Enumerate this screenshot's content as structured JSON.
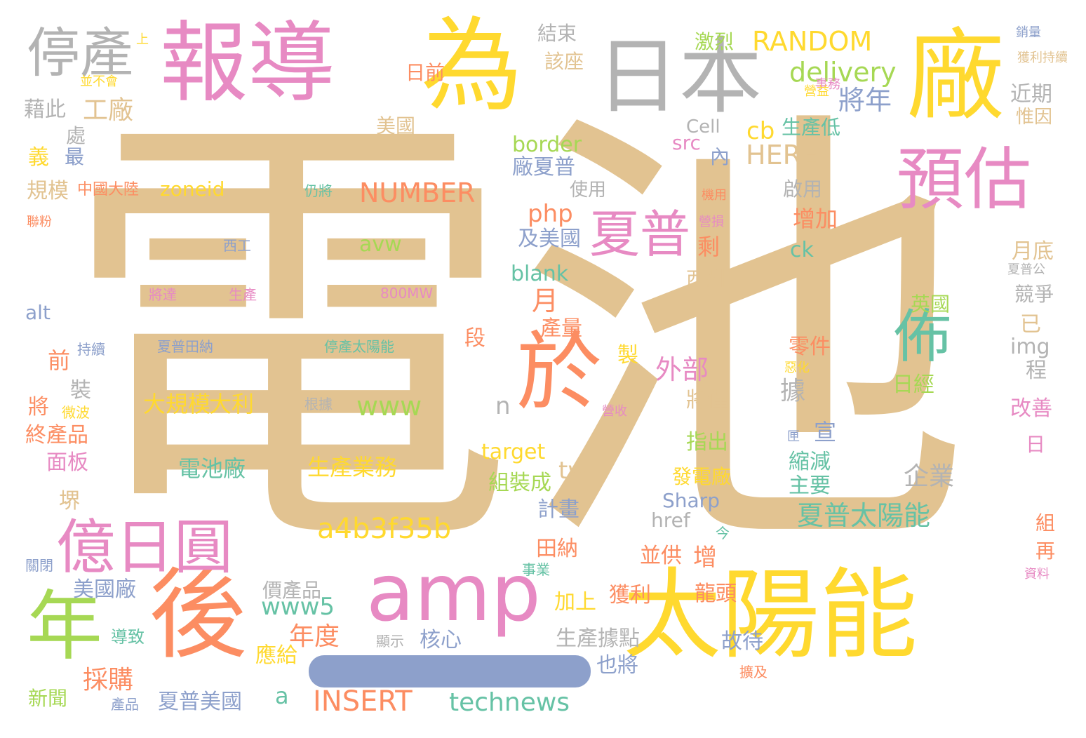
{
  "palette": {
    "tan": "#e2c391",
    "pink": "#e78ac3",
    "yellow": "#ffd92f",
    "gray": "#b3b3b3",
    "green": "#a6d854",
    "orange": "#fc8d62",
    "teal": "#66c2a5",
    "blue": "#8da0cb"
  },
  "words": [
    {
      "text": "電池",
      "color": "#e2c391"
    },
    {
      "text": "報導",
      "color": "#e78ac3"
    },
    {
      "text": "為",
      "color": "#ffd92f"
    },
    {
      "text": "日本",
      "color": "#b3b3b3"
    },
    {
      "text": "廠",
      "color": "#ffd92f"
    },
    {
      "text": "停產",
      "color": "#b3b3b3"
    },
    {
      "text": "預估",
      "color": "#e78ac3"
    },
    {
      "text": "太陽能",
      "color": "#ffd92f"
    },
    {
      "text": "後",
      "color": "#fc8d62"
    },
    {
      "text": "年",
      "color": "#a6d854"
    },
    {
      "text": "amp",
      "color": "#e78ac3"
    },
    {
      "text": "億日圓",
      "color": "#e78ac3"
    },
    {
      "text": "於",
      "color": "#fc8d62"
    },
    {
      "text": "夏普",
      "color": "#e78ac3"
    },
    {
      "text": "佈",
      "color": "#66c2a5"
    },
    {
      "text": "RANDOM",
      "color": "#ffd92f"
    },
    {
      "text": "delivery",
      "color": "#a6d854"
    },
    {
      "text": "將年",
      "color": "#8da0cb"
    },
    {
      "text": "cb",
      "color": "#ffd92f"
    },
    {
      "text": "HERE",
      "color": "#e2c391"
    },
    {
      "text": "生產低",
      "color": "#66c2a5"
    },
    {
      "text": "NUMBER",
      "color": "#fc8d62"
    },
    {
      "text": "php",
      "color": "#fc8d62"
    },
    {
      "text": "工廠",
      "color": "#e2c391"
    },
    {
      "text": "藉此",
      "color": "#b3b3b3"
    },
    {
      "text": "處",
      "color": "#b3b3b3"
    },
    {
      "text": "義",
      "color": "#ffd92f"
    },
    {
      "text": "最",
      "color": "#8da0cb"
    },
    {
      "text": "規模",
      "color": "#e2c391"
    },
    {
      "text": "中國大陸",
      "color": "#fc8d62"
    },
    {
      "text": "zoneid",
      "color": "#ffd92f"
    },
    {
      "text": "仍將",
      "color": "#66c2a5"
    },
    {
      "text": "聯粉",
      "color": "#fc8d62"
    },
    {
      "text": "西工",
      "color": "#8da0cb"
    },
    {
      "text": "生產",
      "color": "#e78ac3"
    },
    {
      "text": "將達",
      "color": "#e78ac3"
    },
    {
      "text": "800MW",
      "color": "#e78ac3"
    },
    {
      "text": "avw",
      "color": "#a6d854"
    },
    {
      "text": "blank",
      "color": "#66c2a5"
    },
    {
      "text": "alt",
      "color": "#8da0cb"
    },
    {
      "text": "持續",
      "color": "#8da0cb"
    },
    {
      "text": "夏普田納",
      "color": "#8da0cb"
    },
    {
      "text": "停產太陽能",
      "color": "#66c2a5"
    },
    {
      "text": "前",
      "color": "#fc8d62"
    },
    {
      "text": "裝",
      "color": "#b3b3b3"
    },
    {
      "text": "將",
      "color": "#fc8d62"
    },
    {
      "text": "微波",
      "color": "#ffd92f"
    },
    {
      "text": "終產品",
      "color": "#fc8d62"
    },
    {
      "text": "面板",
      "color": "#e78ac3"
    },
    {
      "text": "堺",
      "color": "#e2c391"
    },
    {
      "text": "關閉",
      "color": "#8da0cb"
    },
    {
      "text": "新聞",
      "color": "#a6d854"
    },
    {
      "text": "導致",
      "color": "#66c2a5"
    },
    {
      "text": "產品",
      "color": "#8da0cb"
    },
    {
      "text": "美國廠",
      "color": "#8da0cb"
    },
    {
      "text": "採購",
      "color": "#fc8d62"
    },
    {
      "text": "夏普美國",
      "color": "#8da0cb"
    },
    {
      "text": "大規模",
      "color": "#ffd92f"
    },
    {
      "text": "大利",
      "color": "#ffd92f"
    },
    {
      "text": "電池廠",
      "color": "#66c2a5"
    },
    {
      "text": "生產業務",
      "color": "#ffd92f"
    },
    {
      "text": "根據",
      "color": "#b3b3b3"
    },
    {
      "text": "www",
      "color": "#a6d854"
    },
    {
      "text": "a4b3f35b",
      "color": "#ffd92f"
    },
    {
      "text": "www5",
      "color": "#66c2a5"
    },
    {
      "text": "年度",
      "color": "#fc8d62"
    },
    {
      "text": "INSERT",
      "color": "#fc8d62"
    },
    {
      "text": "technews",
      "color": "#66c2a5"
    },
    {
      "text": "a",
      "color": "#66c2a5"
    },
    {
      "text": "應給",
      "color": "#ffd92f"
    },
    {
      "text": "價產品",
      "color": "#b3b3b3"
    },
    {
      "text": "顯示",
      "color": "#b3b3b3"
    },
    {
      "text": "核心",
      "color": "#8da0cb"
    },
    {
      "text": "加上",
      "color": "#ffd92f"
    },
    {
      "text": "獲利",
      "color": "#fc8d62"
    },
    {
      "text": "生產據點",
      "color": "#b3b3b3"
    },
    {
      "text": "也將",
      "color": "#8da0cb"
    },
    {
      "text": "故待",
      "color": "#8da0cb"
    },
    {
      "text": "龍頭",
      "color": "#fc8d62"
    },
    {
      "text": "並供",
      "color": "#fc8d62"
    },
    {
      "text": "增",
      "color": "#fc8d62"
    },
    {
      "text": "田納",
      "color": "#fc8d62"
    },
    {
      "text": "計畫",
      "color": "#8da0cb"
    },
    {
      "text": "組裝成",
      "color": "#a6d854"
    },
    {
      "text": "tw",
      "color": "#e2c391"
    },
    {
      "text": "target",
      "color": "#ffd92f"
    },
    {
      "text": "n",
      "color": "#b3b3b3"
    },
    {
      "text": "月",
      "color": "#fc8d62"
    },
    {
      "text": "外部",
      "color": "#e78ac3"
    },
    {
      "text": "產量",
      "color": "#fc8d62"
    },
    {
      "text": "段",
      "color": "#fc8d62"
    },
    {
      "text": "製",
      "color": "#ffd92f"
    },
    {
      "text": "結束",
      "color": "#b3b3b3"
    },
    {
      "text": "該座",
      "color": "#e2c391"
    },
    {
      "text": "日前",
      "color": "#fc8d62"
    },
    {
      "text": "美國",
      "color": "#e2c391"
    },
    {
      "text": "border",
      "color": "#a6d854"
    },
    {
      "text": "廠夏普",
      "color": "#8da0cb"
    },
    {
      "text": "使用",
      "color": "#b3b3b3"
    },
    {
      "text": "及美國",
      "color": "#8da0cb"
    },
    {
      "text": "剩",
      "color": "#fc8d62"
    },
    {
      "text": "西州",
      "color": "#e2c391"
    },
    {
      "text": "增加",
      "color": "#fc8d62"
    },
    {
      "text": "啟用",
      "color": "#b3b3b3"
    },
    {
      "text": "ck",
      "color": "#66c2a5"
    },
    {
      "text": "英國",
      "color": "#a6d854"
    },
    {
      "text": "零件",
      "color": "#fc8d62"
    },
    {
      "text": "惡化",
      "color": "#ffd92f"
    },
    {
      "text": "日經",
      "color": "#a6d854"
    },
    {
      "text": "據",
      "color": "#b3b3b3"
    },
    {
      "text": "宣",
      "color": "#8da0cb"
    },
    {
      "text": "縮減",
      "color": "#66c2a5"
    },
    {
      "text": "主要",
      "color": "#66c2a5"
    },
    {
      "text": "匣",
      "color": "#8da0cb"
    },
    {
      "text": "企業",
      "color": "#b3b3b3"
    },
    {
      "text": "夏普太陽能",
      "color": "#66c2a5"
    },
    {
      "text": "將僅",
      "color": "#e2c391"
    },
    {
      "text": "指出",
      "color": "#a6d854"
    },
    {
      "text": "發電廠",
      "color": "#ffd92f"
    },
    {
      "text": "Sharp",
      "color": "#8da0cb"
    },
    {
      "text": "href",
      "color": "#b3b3b3"
    },
    {
      "text": "今",
      "color": "#66c2a5"
    },
    {
      "text": "事業",
      "color": "#66c2a5"
    },
    {
      "text": "擴及",
      "color": "#fc8d62"
    },
    {
      "text": "激烈",
      "color": "#a6d854"
    },
    {
      "text": "上",
      "color": "#ffd92f"
    },
    {
      "text": "並不會",
      "color": "#ffd92f"
    },
    {
      "text": "事務",
      "color": "#e78ac3"
    },
    {
      "text": "營益",
      "color": "#ffd92f"
    },
    {
      "text": "src",
      "color": "#e78ac3"
    },
    {
      "text": "Cell",
      "color": "#b3b3b3"
    },
    {
      "text": "內",
      "color": "#8da0cb"
    },
    {
      "text": "機用",
      "color": "#fc8d62"
    },
    {
      "text": "營損",
      "color": "#e78ac3"
    },
    {
      "text": "營收",
      "color": "#e78ac3"
    },
    {
      "text": "銷量",
      "color": "#8da0cb"
    },
    {
      "text": "獲利持續",
      "color": "#e2c391"
    },
    {
      "text": "近期",
      "color": "#b3b3b3"
    },
    {
      "text": "惟因",
      "color": "#e2c391"
    },
    {
      "text": "夏普公",
      "color": "#b3b3b3"
    },
    {
      "text": "月底",
      "color": "#e2c391"
    },
    {
      "text": "競爭",
      "color": "#b3b3b3"
    },
    {
      "text": "已",
      "color": "#e2c391"
    },
    {
      "text": "img",
      "color": "#b3b3b3"
    },
    {
      "text": "程",
      "color": "#b3b3b3"
    },
    {
      "text": "改善",
      "color": "#e78ac3"
    },
    {
      "text": "日",
      "color": "#e78ac3"
    },
    {
      "text": "組",
      "color": "#fc8d62"
    },
    {
      "text": "再",
      "color": "#fc8d62"
    },
    {
      "text": "資料",
      "color": "#e78ac3"
    }
  ]
}
